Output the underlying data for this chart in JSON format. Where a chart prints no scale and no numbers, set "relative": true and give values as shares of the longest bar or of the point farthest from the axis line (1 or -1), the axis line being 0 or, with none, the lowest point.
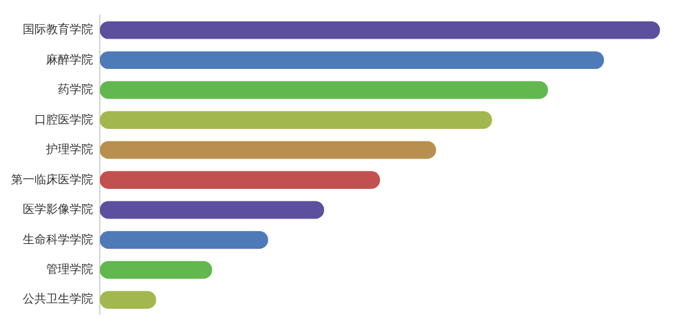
{
  "chart_data": {
    "type": "bar",
    "orientation": "horizontal",
    "relative": true,
    "categories": [
      "国际教育学院",
      "麻醉学院",
      "药学院",
      "口腔医学院",
      "护理学院",
      "第一临床医学院",
      "医学影像学院",
      "生命科学学院",
      "管理学院",
      "公共卫生学院"
    ],
    "values": [
      1,
      0.9,
      0.8,
      0.7,
      0.6,
      0.5,
      0.4,
      0.3,
      0.2,
      0.1
    ],
    "colors": [
      "#5c4f9e",
      "#4e7ab8",
      "#62b74f",
      "#a3b74f",
      "#b88f4f",
      "#c2504f",
      "#5c4f9e",
      "#4e7ab8",
      "#62b74f",
      "#a3b74f"
    ],
    "legend": false
  }
}
